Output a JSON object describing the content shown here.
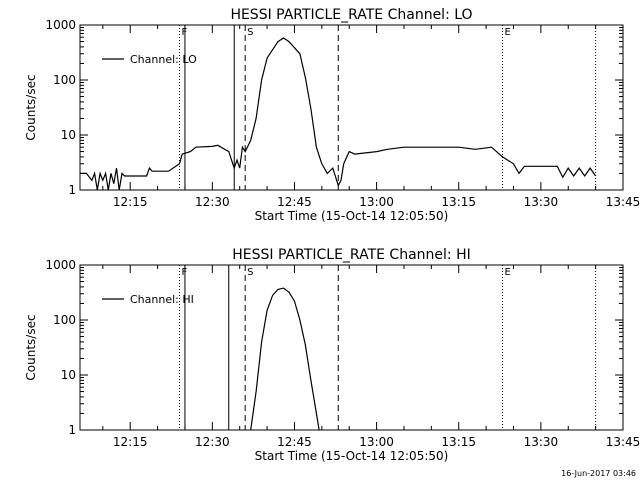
{
  "footer": {
    "timestamp": "16-Jun-2017 03:46"
  },
  "chart_data": [
    {
      "type": "line",
      "title": "HESSI PARTICLE_RATE Channel: LO",
      "xlabel": "Start Time (15-Oct-14 12:05:50)",
      "ylabel": "Counts/sec",
      "x_tick_labels": [
        "12:15",
        "12:30",
        "12:45",
        "13:00",
        "13:15",
        "13:30",
        "13:45"
      ],
      "y_tick_labels": [
        "1",
        "10",
        "100",
        "1000"
      ],
      "y_scale": "log",
      "xlim": [
        "12:05:50",
        "13:45"
      ],
      "ylim": [
        1,
        1000
      ],
      "legend": {
        "placement": "top-left",
        "entries": [
          "Channel: LO"
        ]
      },
      "event_markers": [
        {
          "label": "F",
          "time": "12:24",
          "style": "dotted"
        },
        {
          "label": "",
          "time": "12:25",
          "style": "solid"
        },
        {
          "label": "",
          "time": "12:34",
          "style": "solid"
        },
        {
          "label": "S",
          "time": "12:36",
          "style": "dashed"
        },
        {
          "label": "",
          "time": "12:53",
          "style": "dashed"
        },
        {
          "label": "E",
          "time": "13:23",
          "style": "dotted"
        },
        {
          "label": "",
          "time": "13:40",
          "style": "dotted"
        }
      ],
      "series": [
        {
          "color": "#000000",
          "points": [
            [
              "12:05:50",
              2
            ],
            [
              "12:07",
              2
            ],
            [
              "12:08",
              1.5
            ],
            [
              "12:08:30",
              2
            ],
            [
              "12:09",
              1
            ],
            [
              "12:09:30",
              2
            ],
            [
              "12:10",
              1.5
            ],
            [
              "12:10:30",
              2
            ],
            [
              "12:11",
              1
            ],
            [
              "12:11:30",
              2
            ],
            [
              "12:12",
              1.3
            ],
            [
              "12:12:30",
              2.5
            ],
            [
              "12:13",
              1
            ],
            [
              "12:13:30",
              2
            ],
            [
              "12:14",
              1.8
            ],
            [
              "12:18",
              1.8
            ],
            [
              "12:18:30",
              2.5
            ],
            [
              "12:19",
              2.2
            ],
            [
              "12:22",
              2.2
            ],
            [
              "12:24",
              3
            ],
            [
              "12:24:30",
              4.5
            ],
            [
              "12:26",
              5
            ],
            [
              "12:27",
              6
            ],
            [
              "12:30",
              6.2
            ],
            [
              "12:31",
              6.5
            ],
            [
              "12:33",
              5
            ],
            [
              "12:34",
              2.5
            ],
            [
              "12:34:30",
              3.5
            ],
            [
              "12:35",
              2.5
            ],
            [
              "12:35:30",
              6
            ],
            [
              "12:36",
              5
            ],
            [
              "12:37",
              8
            ],
            [
              "12:38",
              20
            ],
            [
              "12:39",
              100
            ],
            [
              "12:40",
              250
            ],
            [
              "12:42",
              500
            ],
            [
              "12:43",
              580
            ],
            [
              "12:44",
              500
            ],
            [
              "12:46",
              300
            ],
            [
              "12:47",
              110
            ],
            [
              "12:48",
              30
            ],
            [
              "12:49",
              6
            ],
            [
              "12:50",
              3
            ],
            [
              "12:51",
              2
            ],
            [
              "12:52",
              2.5
            ],
            [
              "12:53",
              1.2
            ],
            [
              "12:53:30",
              1.5
            ],
            [
              "12:54",
              3
            ],
            [
              "12:55",
              5
            ],
            [
              "12:56",
              4.5
            ],
            [
              "13:00",
              5
            ],
            [
              "13:02",
              5.5
            ],
            [
              "13:05",
              6
            ],
            [
              "13:10",
              6
            ],
            [
              "13:15",
              6
            ],
            [
              "13:18",
              5.5
            ],
            [
              "13:21",
              6
            ],
            [
              "13:23",
              4
            ],
            [
              "13:25",
              3
            ],
            [
              "13:26",
              2
            ],
            [
              "13:27",
              2.7
            ],
            [
              "13:30",
              2.7
            ],
            [
              "13:33",
              2.7
            ],
            [
              "13:34",
              1.7
            ],
            [
              "13:35",
              2.5
            ],
            [
              "13:36",
              1.8
            ],
            [
              "13:37",
              2.5
            ],
            [
              "13:38",
              1.8
            ],
            [
              "13:39",
              2.5
            ],
            [
              "13:40",
              1.8
            ]
          ]
        }
      ]
    },
    {
      "type": "line",
      "title": "HESSI PARTICLE_RATE Channel: HI",
      "xlabel": "Start Time (15-Oct-14 12:05:50)",
      "ylabel": "Counts/sec",
      "x_tick_labels": [
        "12:15",
        "12:30",
        "12:45",
        "13:00",
        "13:15",
        "13:30",
        "13:45"
      ],
      "y_tick_labels": [
        "1",
        "10",
        "100",
        "1000"
      ],
      "y_scale": "log",
      "xlim": [
        "12:05:50",
        "13:45"
      ],
      "ylim": [
        1,
        1000
      ],
      "legend": {
        "placement": "top-left",
        "entries": [
          "Channel: HI"
        ]
      },
      "event_markers": [
        {
          "label": "F",
          "time": "12:24",
          "style": "dotted"
        },
        {
          "label": "",
          "time": "12:25",
          "style": "solid"
        },
        {
          "label": "",
          "time": "12:33",
          "style": "solid"
        },
        {
          "label": "S",
          "time": "12:36",
          "style": "dashed"
        },
        {
          "label": "",
          "time": "12:53",
          "style": "dashed"
        },
        {
          "label": "E",
          "time": "13:23",
          "style": "dotted"
        },
        {
          "label": "",
          "time": "13:40",
          "style": "dotted"
        }
      ],
      "series": [
        {
          "color": "#000000",
          "points": [
            [
              "12:37",
              1
            ],
            [
              "12:38",
              5
            ],
            [
              "12:39",
              40
            ],
            [
              "12:40",
              150
            ],
            [
              "12:41",
              280
            ],
            [
              "12:42",
              360
            ],
            [
              "12:43",
              380
            ],
            [
              "12:44",
              320
            ],
            [
              "12:45",
              220
            ],
            [
              "12:46",
              100
            ],
            [
              "12:47",
              35
            ],
            [
              "12:48",
              8
            ],
            [
              "12:49",
              2
            ],
            [
              "12:49:30",
              1
            ]
          ]
        }
      ]
    }
  ]
}
